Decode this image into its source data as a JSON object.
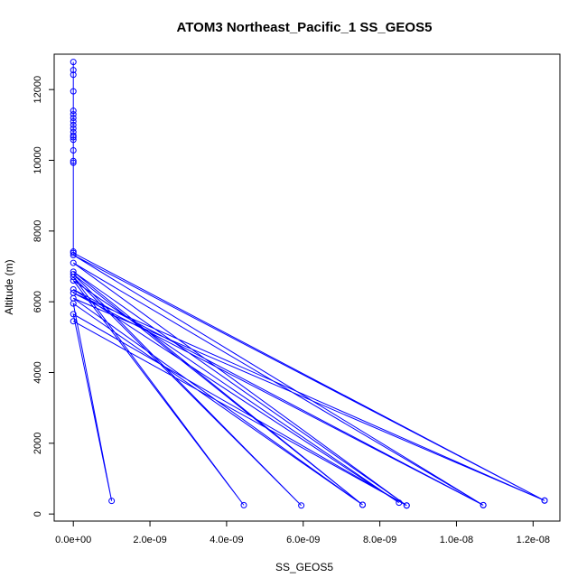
{
  "chart_data": {
    "type": "line",
    "title": "ATOM3 Northeast_Pacific_1 SS_GEOS5",
    "xlabel": "SS_GEOS5",
    "ylabel": "Altitude (m)",
    "xlim": [
      -5e-10,
      1.27e-08
    ],
    "ylim": [
      -200,
      13000
    ],
    "x_ticks": [
      0,
      2e-09,
      4e-09,
      6e-09,
      8e-09,
      1e-08,
      1.2e-08
    ],
    "x_tick_labels": [
      "0.0e+00",
      "2.0e-09",
      "4.0e-09",
      "6.0e-09",
      "8.0e-09",
      "1.0e-08",
      "1.2e-08"
    ],
    "y_ticks": [
      0,
      2000,
      4000,
      6000,
      8000,
      10000,
      12000
    ],
    "y_tick_labels": [
      "0",
      "2000",
      "4000",
      "6000",
      "8000",
      "10000",
      "12000"
    ],
    "marker": "open-circle",
    "grid": false,
    "series": [
      {
        "color": "#0000ff",
        "points": [
          [
            0,
            12780
          ],
          [
            0,
            12550
          ],
          [
            0,
            12420
          ],
          [
            0,
            11950
          ],
          [
            0,
            11400
          ],
          [
            0,
            11300
          ],
          [
            0,
            11200
          ],
          [
            0,
            11100
          ],
          [
            0,
            11000
          ],
          [
            0,
            10900
          ],
          [
            0,
            10800
          ],
          [
            0,
            10700
          ],
          [
            0,
            10650
          ],
          [
            0,
            10580
          ],
          [
            0,
            10280
          ],
          [
            0,
            9980
          ],
          [
            0,
            9930
          ],
          [
            0,
            7420
          ],
          [
            0,
            7380
          ],
          [
            1.23e-08,
            380
          ],
          [
            0,
            7320
          ],
          [
            1.07e-08,
            250
          ],
          [
            0,
            7100
          ],
          [
            8.7e-09,
            240
          ],
          [
            0,
            6850
          ],
          [
            7.55e-09,
            260
          ],
          [
            0,
            6780
          ],
          [
            5.95e-09,
            240
          ],
          [
            0,
            6700
          ],
          [
            4.45e-09,
            250
          ],
          [
            0,
            6600
          ],
          [
            8.5e-09,
            320
          ],
          [
            0,
            6350
          ],
          [
            1.07e-08,
            250
          ],
          [
            0,
            6250
          ],
          [
            1.23e-08,
            380
          ],
          [
            0,
            6100
          ],
          [
            7.55e-09,
            260
          ],
          [
            0,
            5950
          ],
          [
            1e-09,
            370
          ],
          [
            0,
            5650
          ],
          [
            8.7e-09,
            240
          ],
          [
            0,
            5450
          ]
        ]
      }
    ]
  }
}
